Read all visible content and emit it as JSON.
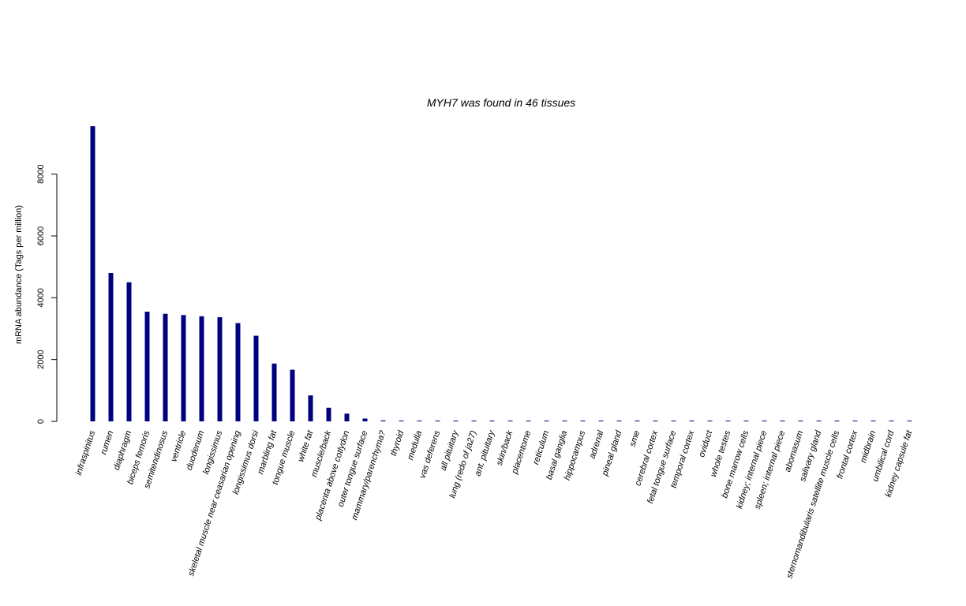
{
  "chart_data": {
    "type": "bar",
    "title": "MYH7  was found in  46  tissues",
    "xlabel": "",
    "ylabel": "mRNA abundance (Tags per million)",
    "ylim": [
      0,
      9600
    ],
    "yticks": [
      0,
      2000,
      4000,
      6000,
      8000
    ],
    "grid": false,
    "bar_color": "#000080",
    "categories": [
      "infraspinitus",
      "rumen",
      "diaphragm",
      "biceps femoris",
      "semitendinosus",
      "ventricle",
      "duodenum",
      "longissimus",
      "skeletal muscle near ceasarian opening",
      "longissimus dorsi",
      "marbling fat",
      "tongue muscle",
      "white fat",
      "muscle/back",
      "placenta above cotlydon",
      "outer tongue surface",
      "mammary/parenchyma?",
      "thyroid",
      "medulla",
      "vas deferens",
      "all pituitary",
      "lung (redo of ja27)",
      "ant. pituitary",
      "skin/back",
      "placentome",
      "reticulum",
      "basal ganglia",
      "hippocampus",
      "adrenal",
      "pineal gland",
      "sme",
      "cerebral cortex",
      "fetal tongue surface",
      "temporal cortex",
      "oviduct",
      "whole testes",
      "bone marrow cells",
      "kidney; internal piece",
      "spleen; internal piece",
      "abomasum",
      "salivary gland",
      "sternomandibularis satellite muscle cells",
      "frontal cortex",
      "midbrain",
      "umbilical cord",
      "kidney capsule fat"
    ],
    "values": [
      9550,
      4800,
      4500,
      3550,
      3480,
      3440,
      3400,
      3370,
      3180,
      2770,
      1870,
      1670,
      840,
      440,
      250,
      90,
      30,
      20,
      15,
      12,
      10,
      8,
      8,
      7,
      6,
      6,
      5,
      5,
      5,
      4,
      4,
      4,
      3,
      3,
      3,
      3,
      3,
      2,
      2,
      2,
      2,
      2,
      2,
      2,
      2,
      2
    ]
  }
}
